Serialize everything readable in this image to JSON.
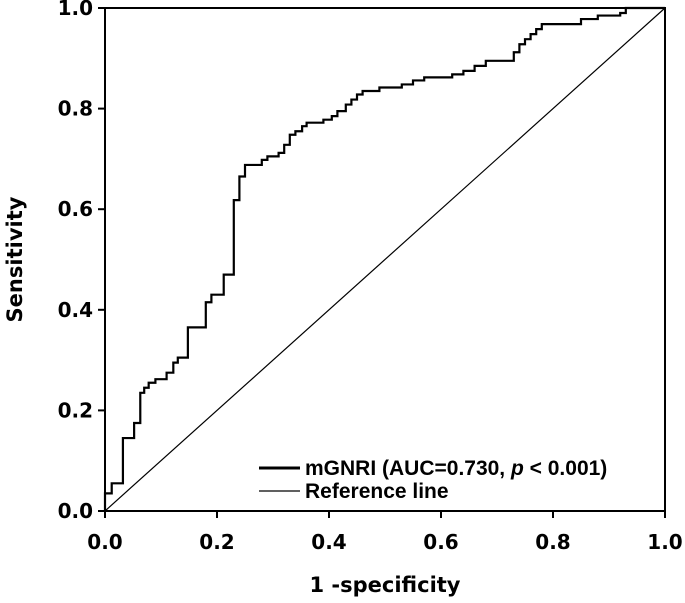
{
  "chart_data": {
    "type": "line",
    "xlabel": "1 -specificity",
    "ylabel": "Sensitivity",
    "xlim": [
      0,
      1
    ],
    "ylim": [
      0,
      1
    ],
    "xticks": [
      "0.0",
      "0.2",
      "0.4",
      "0.6",
      "0.8",
      "1.0"
    ],
    "yticks": [
      "0.0",
      "0.2",
      "0.4",
      "0.6",
      "0.8",
      "1.0"
    ],
    "grid": false,
    "legend_position": "bottom-right",
    "series": [
      {
        "name": "mGNRI",
        "legend_label": {
          "prefix": "mGNRI (AUC=0.730, ",
          "italic": "p",
          "suffix": " < 0.001)"
        },
        "color": "#000000",
        "line_style": "thick-solid",
        "step": true,
        "points": [
          [
            0.0,
            0.0
          ],
          [
            0.0,
            0.035
          ],
          [
            0.012,
            0.035
          ],
          [
            0.012,
            0.055
          ],
          [
            0.032,
            0.055
          ],
          [
            0.032,
            0.145
          ],
          [
            0.052,
            0.145
          ],
          [
            0.052,
            0.175
          ],
          [
            0.063,
            0.175
          ],
          [
            0.063,
            0.235
          ],
          [
            0.07,
            0.235
          ],
          [
            0.07,
            0.245
          ],
          [
            0.078,
            0.245
          ],
          [
            0.078,
            0.255
          ],
          [
            0.09,
            0.255
          ],
          [
            0.09,
            0.262
          ],
          [
            0.11,
            0.262
          ],
          [
            0.11,
            0.275
          ],
          [
            0.122,
            0.275
          ],
          [
            0.122,
            0.295
          ],
          [
            0.13,
            0.295
          ],
          [
            0.13,
            0.305
          ],
          [
            0.148,
            0.305
          ],
          [
            0.148,
            0.365
          ],
          [
            0.18,
            0.365
          ],
          [
            0.18,
            0.415
          ],
          [
            0.19,
            0.415
          ],
          [
            0.19,
            0.43
          ],
          [
            0.212,
            0.43
          ],
          [
            0.212,
            0.47
          ],
          [
            0.23,
            0.47
          ],
          [
            0.23,
            0.618
          ],
          [
            0.24,
            0.618
          ],
          [
            0.24,
            0.665
          ],
          [
            0.25,
            0.665
          ],
          [
            0.25,
            0.688
          ],
          [
            0.28,
            0.688
          ],
          [
            0.28,
            0.698
          ],
          [
            0.29,
            0.698
          ],
          [
            0.29,
            0.705
          ],
          [
            0.31,
            0.705
          ],
          [
            0.31,
            0.712
          ],
          [
            0.32,
            0.712
          ],
          [
            0.32,
            0.728
          ],
          [
            0.33,
            0.728
          ],
          [
            0.33,
            0.748
          ],
          [
            0.34,
            0.748
          ],
          [
            0.34,
            0.755
          ],
          [
            0.352,
            0.755
          ],
          [
            0.352,
            0.765
          ],
          [
            0.36,
            0.765
          ],
          [
            0.36,
            0.772
          ],
          [
            0.39,
            0.772
          ],
          [
            0.39,
            0.778
          ],
          [
            0.405,
            0.778
          ],
          [
            0.405,
            0.785
          ],
          [
            0.415,
            0.785
          ],
          [
            0.415,
            0.795
          ],
          [
            0.43,
            0.795
          ],
          [
            0.43,
            0.808
          ],
          [
            0.44,
            0.808
          ],
          [
            0.44,
            0.818
          ],
          [
            0.45,
            0.818
          ],
          [
            0.45,
            0.828
          ],
          [
            0.46,
            0.828
          ],
          [
            0.46,
            0.835
          ],
          [
            0.49,
            0.835
          ],
          [
            0.49,
            0.842
          ],
          [
            0.53,
            0.842
          ],
          [
            0.53,
            0.848
          ],
          [
            0.55,
            0.848
          ],
          [
            0.55,
            0.856
          ],
          [
            0.57,
            0.856
          ],
          [
            0.57,
            0.862
          ],
          [
            0.62,
            0.862
          ],
          [
            0.62,
            0.868
          ],
          [
            0.64,
            0.868
          ],
          [
            0.64,
            0.875
          ],
          [
            0.66,
            0.875
          ],
          [
            0.66,
            0.885
          ],
          [
            0.68,
            0.885
          ],
          [
            0.68,
            0.895
          ],
          [
            0.73,
            0.895
          ],
          [
            0.73,
            0.912
          ],
          [
            0.74,
            0.912
          ],
          [
            0.74,
            0.928
          ],
          [
            0.75,
            0.928
          ],
          [
            0.75,
            0.938
          ],
          [
            0.76,
            0.938
          ],
          [
            0.76,
            0.948
          ],
          [
            0.77,
            0.948
          ],
          [
            0.77,
            0.958
          ],
          [
            0.78,
            0.958
          ],
          [
            0.78,
            0.968
          ],
          [
            0.85,
            0.968
          ],
          [
            0.85,
            0.978
          ],
          [
            0.88,
            0.978
          ],
          [
            0.88,
            0.985
          ],
          [
            0.92,
            0.985
          ],
          [
            0.92,
            0.99
          ],
          [
            0.93,
            0.99
          ],
          [
            0.93,
            1.0
          ],
          [
            1.0,
            1.0
          ]
        ]
      },
      {
        "name": "Reference line",
        "legend_label": {
          "prefix": "Reference line",
          "italic": "",
          "suffix": ""
        },
        "color": "#000000",
        "line_style": "thin-solid",
        "step": false,
        "points": [
          [
            0.0,
            0.0
          ],
          [
            1.0,
            1.0
          ]
        ]
      }
    ]
  }
}
